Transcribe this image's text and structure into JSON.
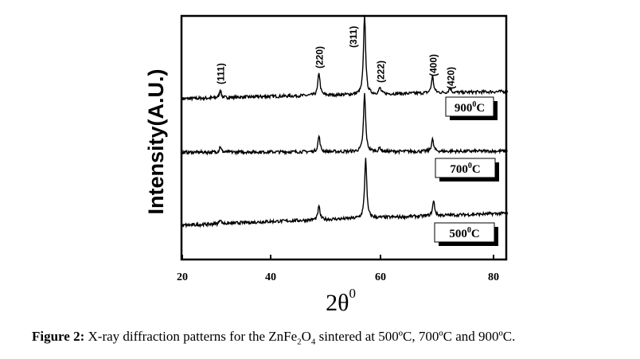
{
  "chart_data": {
    "type": "line",
    "title": "",
    "xlabel": "2θ",
    "xlabel_sup": "0",
    "ylabel": "Intensity(A.U.)",
    "xlim": [
      20,
      82.5
    ],
    "ylim": [
      0,
      100
    ],
    "xticks": [
      20,
      40,
      60,
      80
    ],
    "xtick_labels": [
      "20",
      "40",
      "60",
      "80"
    ],
    "grid": false,
    "annotations": [
      {
        "label": "(111)",
        "x": 28.6
      },
      {
        "label": "(220)",
        "x": 48.8
      },
      {
        "label": "(311)",
        "x": 57.1
      },
      {
        "label": "(222)",
        "x": 59.9
      },
      {
        "label": "(400)",
        "x": 69.2
      },
      {
        "label": "(420)",
        "x": 72.3
      }
    ],
    "series": [
      {
        "name": "900",
        "legend": "900",
        "legend_sup": "0",
        "legend_unit": "C",
        "baseline": [
          66,
          69
        ],
        "peaks": [
          [
            28.6,
            3.5
          ],
          [
            48.8,
            9.5
          ],
          [
            57.1,
            33
          ],
          [
            59.9,
            2.5
          ],
          [
            69.2,
            7
          ],
          [
            72.3,
            2
          ]
        ]
      },
      {
        "name": "700",
        "legend": "700",
        "legend_sup": "0",
        "legend_unit": "C",
        "baseline": [
          44,
          44.5
        ],
        "peaks": [
          [
            28.6,
            2.5
          ],
          [
            48.8,
            6.5
          ],
          [
            57.1,
            24
          ],
          [
            59.9,
            1.5
          ],
          [
            69.2,
            5
          ]
        ]
      },
      {
        "name": "500",
        "legend": "500",
        "legend_sup": "0",
        "legend_unit": "C",
        "baseline": [
          14,
          19
        ],
        "peaks": [
          [
            28.6,
            2
          ],
          [
            48.8,
            5.5
          ],
          [
            57.3,
            25
          ],
          [
            69.4,
            6
          ]
        ]
      }
    ]
  },
  "caption": {
    "label": "Figure 2:",
    "text1": " X-ray diffraction patterns for the ZnFe",
    "sub1": "2",
    "text2": "O",
    "sub2": "4",
    "text3": " sintered at 500ºC, 700ºC and 900ºC."
  }
}
